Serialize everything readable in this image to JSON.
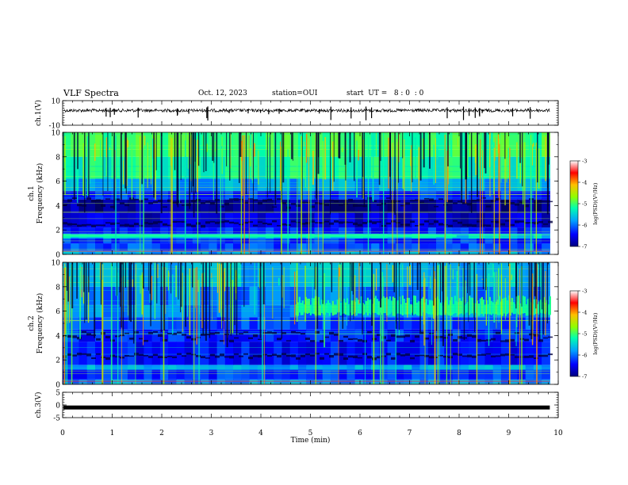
{
  "header": {
    "title": "VLF Spectra",
    "date": "Oct. 12, 2023",
    "station": "station=OUI",
    "start": "start  UT =   8 : 0  : 0"
  },
  "chart_data": [
    {
      "type": "line",
      "panel": "ch.1 waveform",
      "ylabel": "ch.1(V)",
      "ylim": [
        -10,
        10
      ],
      "yticks": [
        "10",
        "-10"
      ],
      "baseline": 2
    },
    {
      "type": "heatmap",
      "panel": "ch.1 spectrogram",
      "ylabel": "ch.1\nFrequency  (kHz)",
      "ylim": [
        0,
        10
      ],
      "yticks": [
        "0",
        "2",
        "4",
        "6",
        "8",
        "10"
      ],
      "colorbar": {
        "label": "log(PSD)(V²/Hz)",
        "range": [
          -7,
          -3
        ],
        "ticks": [
          "-3",
          "-4",
          "-5",
          "-6",
          "-7"
        ]
      }
    },
    {
      "type": "heatmap",
      "panel": "ch.2 spectrogram",
      "ylabel": "ch.2\nFrequency  (kHz)",
      "ylim": [
        0,
        10
      ],
      "yticks": [
        "0",
        "2",
        "4",
        "6",
        "8",
        "10"
      ],
      "colorbar": {
        "label": "log(PSD)(V²/Hz)",
        "range": [
          -7,
          -3
        ],
        "ticks": [
          "-3",
          "-4",
          "-5",
          "-6",
          "-7"
        ]
      }
    },
    {
      "type": "line",
      "panel": "ch.3 waveform",
      "ylabel": "ch.3(V)",
      "ylim": [
        -5,
        5
      ],
      "yticks": [
        "5",
        "0",
        "-5"
      ],
      "baseline": -1
    }
  ],
  "xaxis": {
    "label": "Time  (min)",
    "range": [
      0,
      10
    ],
    "ticks": [
      "0",
      "1",
      "2",
      "3",
      "4",
      "5",
      "6",
      "7",
      "8",
      "9",
      "10"
    ],
    "data_end": 9.83
  },
  "colors": {
    "colormap": [
      "#000080",
      "#0000ff",
      "#00b0ff",
      "#00ffa0",
      "#a0ff00",
      "#ffc000",
      "#ff0000",
      "#ffffff"
    ]
  }
}
